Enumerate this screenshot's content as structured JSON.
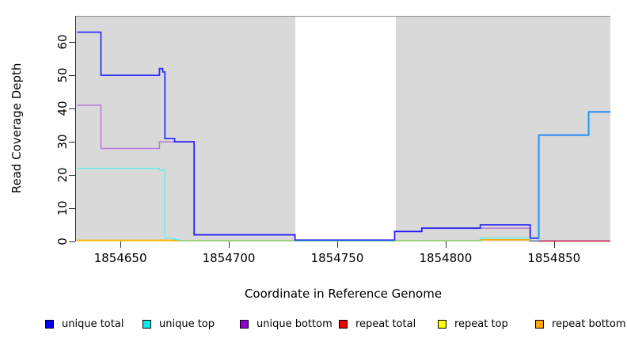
{
  "chart_data": {
    "type": "line",
    "subtype": "step-coverage",
    "title": "",
    "xlabel": "Coordinate in Reference Genome",
    "ylabel": "Read Coverage Depth",
    "xlim": [
      1854629.5,
      1854876
    ],
    "ylim": [
      0,
      67.9
    ],
    "xticks": [
      1854650,
      1854700,
      1854750,
      1854800,
      1854850
    ],
    "yticks": [
      0,
      10,
      20,
      30,
      40,
      50,
      60
    ],
    "grid": false,
    "legend_position": "bottom",
    "panel_bg": "#d9d9d9",
    "panel_top_border": "#8f8f8f",
    "gap_region": {
      "start": 1854730.5,
      "end": 1854777,
      "color": "#ffffff"
    },
    "series": [
      {
        "id": "repeat-top",
        "label": "repeat top",
        "color": "#ffff00",
        "opacity": 0.65,
        "stroke_width": 1.4,
        "points": [
          [
            1854630,
            0.2
          ],
          [
            1854816,
            0.45
          ],
          [
            1854839,
            0.1
          ],
          [
            1854876,
            0.1
          ]
        ]
      },
      {
        "id": "repeat-bottom",
        "label": "repeat bottom",
        "color": "#ffa500",
        "opacity": 0.9,
        "stroke_width": 1.8,
        "points": [
          [
            1854630,
            0.35
          ],
          [
            1854675,
            0.22
          ],
          [
            1854816,
            0.5
          ],
          [
            1854839,
            0.1
          ],
          [
            1854876,
            0.1
          ]
        ]
      },
      {
        "id": "repeat-total",
        "label": "repeat total",
        "color": "#dc143c",
        "opacity": 0.85,
        "stroke_width": 1.4,
        "points": [
          [
            1854839,
            0.15
          ],
          [
            1854876,
            0.15
          ]
        ]
      },
      {
        "id": "unique-bottom",
        "label": "unique bottom",
        "color": "#9400d3",
        "opacity": 0.45,
        "stroke_width": 1.5,
        "points": [
          [
            1854630,
            41
          ],
          [
            1854641,
            28
          ],
          [
            1854668,
            30
          ],
          [
            1854684,
            2
          ],
          [
            1854730.5,
            0.4
          ],
          [
            1854776.5,
            3
          ],
          [
            1854789,
            4
          ],
          [
            1854839,
            0.2
          ],
          [
            1854876,
            0.2
          ]
        ]
      },
      {
        "id": "unique-total",
        "label": "unique total",
        "color": "#0000ff",
        "opacity": 0.78,
        "stroke_width": 1.8,
        "points": [
          [
            1854630,
            63
          ],
          [
            1854641,
            50
          ],
          [
            1854668,
            52
          ],
          [
            1854669.5,
            51
          ],
          [
            1854670.5,
            31
          ],
          [
            1854675,
            30
          ],
          [
            1854684,
            2
          ],
          [
            1854730.5,
            0.4
          ],
          [
            1854776.5,
            3
          ],
          [
            1854789,
            4
          ],
          [
            1854816,
            5
          ],
          [
            1854839,
            1
          ],
          [
            1854843,
            32
          ],
          [
            1854866,
            39
          ],
          [
            1854876,
            39
          ]
        ]
      },
      {
        "id": "unique-top",
        "label": "unique top",
        "color": "#00ffff",
        "opacity": 0.55,
        "stroke_width": 1.4,
        "points": [
          [
            1854630,
            22
          ],
          [
            1854668,
            21.5
          ],
          [
            1854670.5,
            1
          ],
          [
            1854675,
            0.6
          ],
          [
            1854677,
            0.22
          ],
          [
            1854730.5,
            0.15
          ],
          [
            1854776.5,
            0.22
          ],
          [
            1854816,
            1
          ],
          [
            1854839,
            0.22
          ],
          [
            1854843,
            32
          ],
          [
            1854866,
            39
          ],
          [
            1854876,
            39
          ]
        ]
      }
    ]
  },
  "legend": {
    "items": [
      {
        "label": "unique total",
        "color": "#0000ff"
      },
      {
        "label": "unique top",
        "color": "#00eeee"
      },
      {
        "label": "unique bottom",
        "color": "#9400d3"
      },
      {
        "label": "repeat total",
        "color": "#ee0000"
      },
      {
        "label": "repeat top",
        "color": "#ffff00"
      },
      {
        "label": "repeat bottom",
        "color": "#ffa500"
      }
    ]
  }
}
